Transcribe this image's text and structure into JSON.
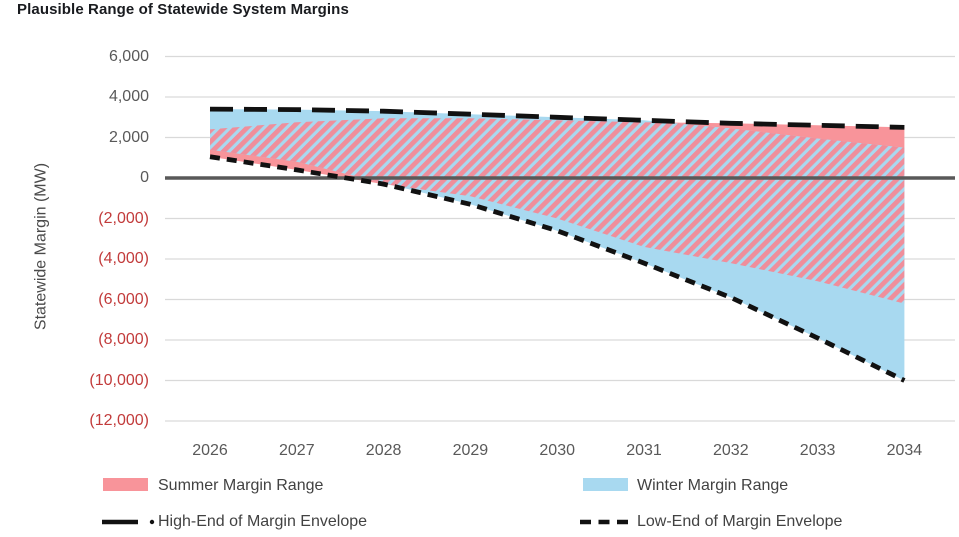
{
  "title": "Plausible Range of Statewide System Margins",
  "chart_data": {
    "type": "area",
    "title": "Plausible Range of Statewide System Margins",
    "xlabel": "",
    "ylabel": "Statewide Margin (MW)",
    "x": [
      2026,
      2027,
      2028,
      2029,
      2030,
      2031,
      2032,
      2033,
      2034
    ],
    "xtick_labels": [
      "2026",
      "2027",
      "2028",
      "2029",
      "2030",
      "2031",
      "2032",
      "2033",
      "2034"
    ],
    "ylim": [
      -12000,
      6000
    ],
    "yticks": [
      {
        "value": 6000,
        "label": "6,000"
      },
      {
        "value": 4000,
        "label": "4,000"
      },
      {
        "value": 2000,
        "label": "2,000"
      },
      {
        "value": 0,
        "label": "0"
      },
      {
        "value": -2000,
        "label": "(2,000)"
      },
      {
        "value": -4000,
        "label": "(4,000)"
      },
      {
        "value": -6000,
        "label": "(6,000)"
      },
      {
        "value": -8000,
        "label": "(8,000)"
      },
      {
        "value": -10000,
        "label": "(10,000)"
      },
      {
        "value": -12000,
        "label": "(12,000)"
      }
    ],
    "grid": "horizontal",
    "legend_position": "bottom",
    "series": [
      {
        "name": "Summer Margin Range",
        "type": "band",
        "color_key": "summer",
        "high": [
          2400,
          2750,
          2950,
          2950,
          2850,
          2750,
          2700,
          2600,
          2500
        ],
        "low": [
          1050,
          400,
          -300,
          -900,
          -2000,
          -3400,
          -4200,
          -5100,
          -6200
        ]
      },
      {
        "name": "Winter Margin Range",
        "type": "band",
        "color_key": "winter",
        "high": [
          3400,
          3380,
          3300,
          3150,
          3000,
          2850,
          2450,
          1950,
          1500
        ],
        "low": [
          1400,
          800,
          -250,
          -1300,
          -2600,
          -4200,
          -5900,
          -7900,
          -10000
        ]
      },
      {
        "name": "High-End of Margin Envelope",
        "type": "line",
        "style": "long-dash",
        "values": [
          3400,
          3380,
          3300,
          3150,
          3000,
          2850,
          2700,
          2600,
          2500
        ]
      },
      {
        "name": "Low-End of Margin Envelope",
        "type": "line",
        "style": "short-dash",
        "values": [
          1050,
          400,
          -300,
          -1300,
          -2600,
          -4200,
          -5900,
          -7900,
          -10000
        ]
      }
    ],
    "colors": {
      "summer": "#F8949A",
      "summer_stripe": "#EF8E9B",
      "winter": "#A8D9F0",
      "envelope_line": "#111111",
      "grid": "#D9D9D9",
      "zero_line": "#595959",
      "tick_positive": "#595959",
      "tick_negative": "#C23B3B"
    }
  }
}
